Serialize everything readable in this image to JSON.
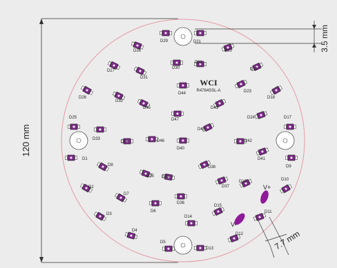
{
  "dimensions": {
    "board_diameter": "120 mm",
    "hole_offset": "3.5 mm",
    "pad_spacing": "7.7 mm"
  },
  "board": {
    "brand": "WCI",
    "part_number": "R4784SSL-A",
    "pad_plus": "V+",
    "pad_minus": "V-"
  },
  "leds": [
    "D1",
    "D2",
    "D3",
    "D4",
    "D5",
    "D6",
    "D7",
    "D8",
    "D9",
    "D10",
    "D11",
    "D12",
    "D13",
    "D14",
    "D15",
    "D16",
    "D17",
    "D18",
    "D19",
    "D20",
    "D21",
    "D22",
    "D23",
    "D24",
    "D25",
    "D26",
    "D27",
    "D28",
    "D29",
    "D30",
    "D31",
    "D32",
    "D33",
    "D34",
    "D35",
    "D36",
    "D37",
    "D38",
    "D39",
    "D40",
    "D41",
    "D42",
    "D43",
    "D44",
    "D45",
    "D46",
    "D47",
    "D48"
  ],
  "colors": {
    "board_outline": "#e39aa5",
    "led_body": "#7a2a86",
    "led_outline": "#222222",
    "pad_fill": "#8e1a9a",
    "dim_line": "#333333",
    "background": "#ececec"
  }
}
